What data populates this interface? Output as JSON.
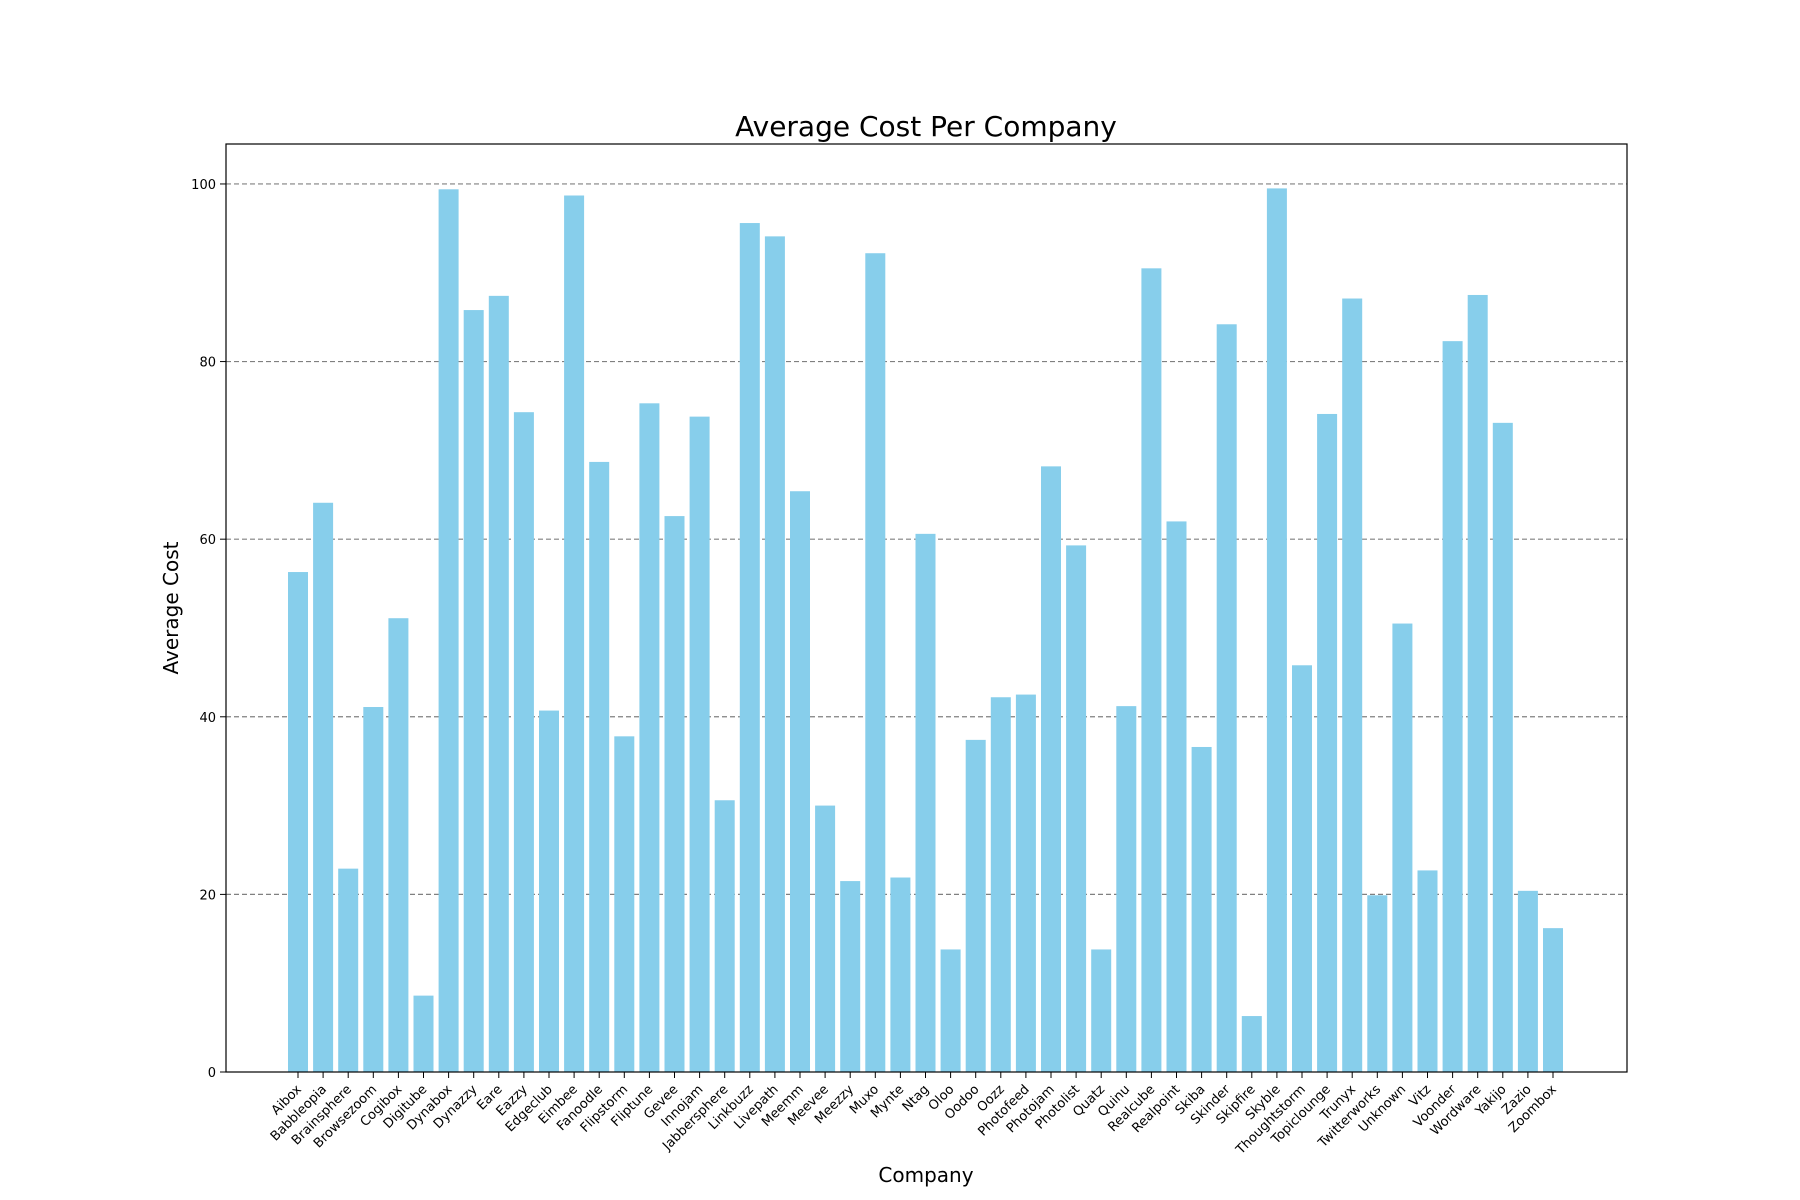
{
  "chart_data": {
    "type": "bar",
    "title": "Average Cost Per Company",
    "xlabel": "Company",
    "ylabel": "Average Cost",
    "ylim": [
      0,
      104.5
    ],
    "yticks": [
      0,
      20,
      40,
      60,
      80,
      100
    ],
    "grid": "y-dashed",
    "bar_color": "#87CEEB",
    "categories": [
      "Aibox",
      "Babbleopia",
      "Brainsphere",
      "Browsezoom",
      "Cogibox",
      "Digitube",
      "Dynabox",
      "Dynazzy",
      "Eare",
      "Eazzy",
      "Edgeclub",
      "Eimbee",
      "Fanoodle",
      "Flipstorm",
      "Fliptune",
      "Gevee",
      "Innojam",
      "Jabbersphere",
      "Linkbuzz",
      "Livepath",
      "Meemm",
      "Meevee",
      "Meezzy",
      "Muxo",
      "Mynte",
      "Ntag",
      "Oloo",
      "Oodoo",
      "Oozz",
      "Photofeed",
      "Photojam",
      "Photolist",
      "Quatz",
      "Quinu",
      "Realcube",
      "Realpoint",
      "Skiba",
      "Skinder",
      "Skipfire",
      "Skyble",
      "Thoughtstorm",
      "Topiclounge",
      "Trunyx",
      "Twitterworks",
      "Unknown",
      "Vitz",
      "Voonder",
      "Wordware",
      "Yakijo",
      "Zazio",
      "Zoombox"
    ],
    "values": [
      56.3,
      64.1,
      22.9,
      41.1,
      51.1,
      8.6,
      99.4,
      85.8,
      87.4,
      74.3,
      40.7,
      98.7,
      68.7,
      37.8,
      75.3,
      62.6,
      73.8,
      30.6,
      95.6,
      94.1,
      65.4,
      30.0,
      21.5,
      92.2,
      21.9,
      60.6,
      13.8,
      37.4,
      42.2,
      42.5,
      68.2,
      59.3,
      13.8,
      41.2,
      90.5,
      62.0,
      36.6,
      84.2,
      6.3,
      99.5,
      45.8,
      74.1,
      87.1,
      19.9,
      50.5,
      22.7,
      82.3,
      87.5,
      73.1,
      20.4,
      16.2
    ]
  }
}
